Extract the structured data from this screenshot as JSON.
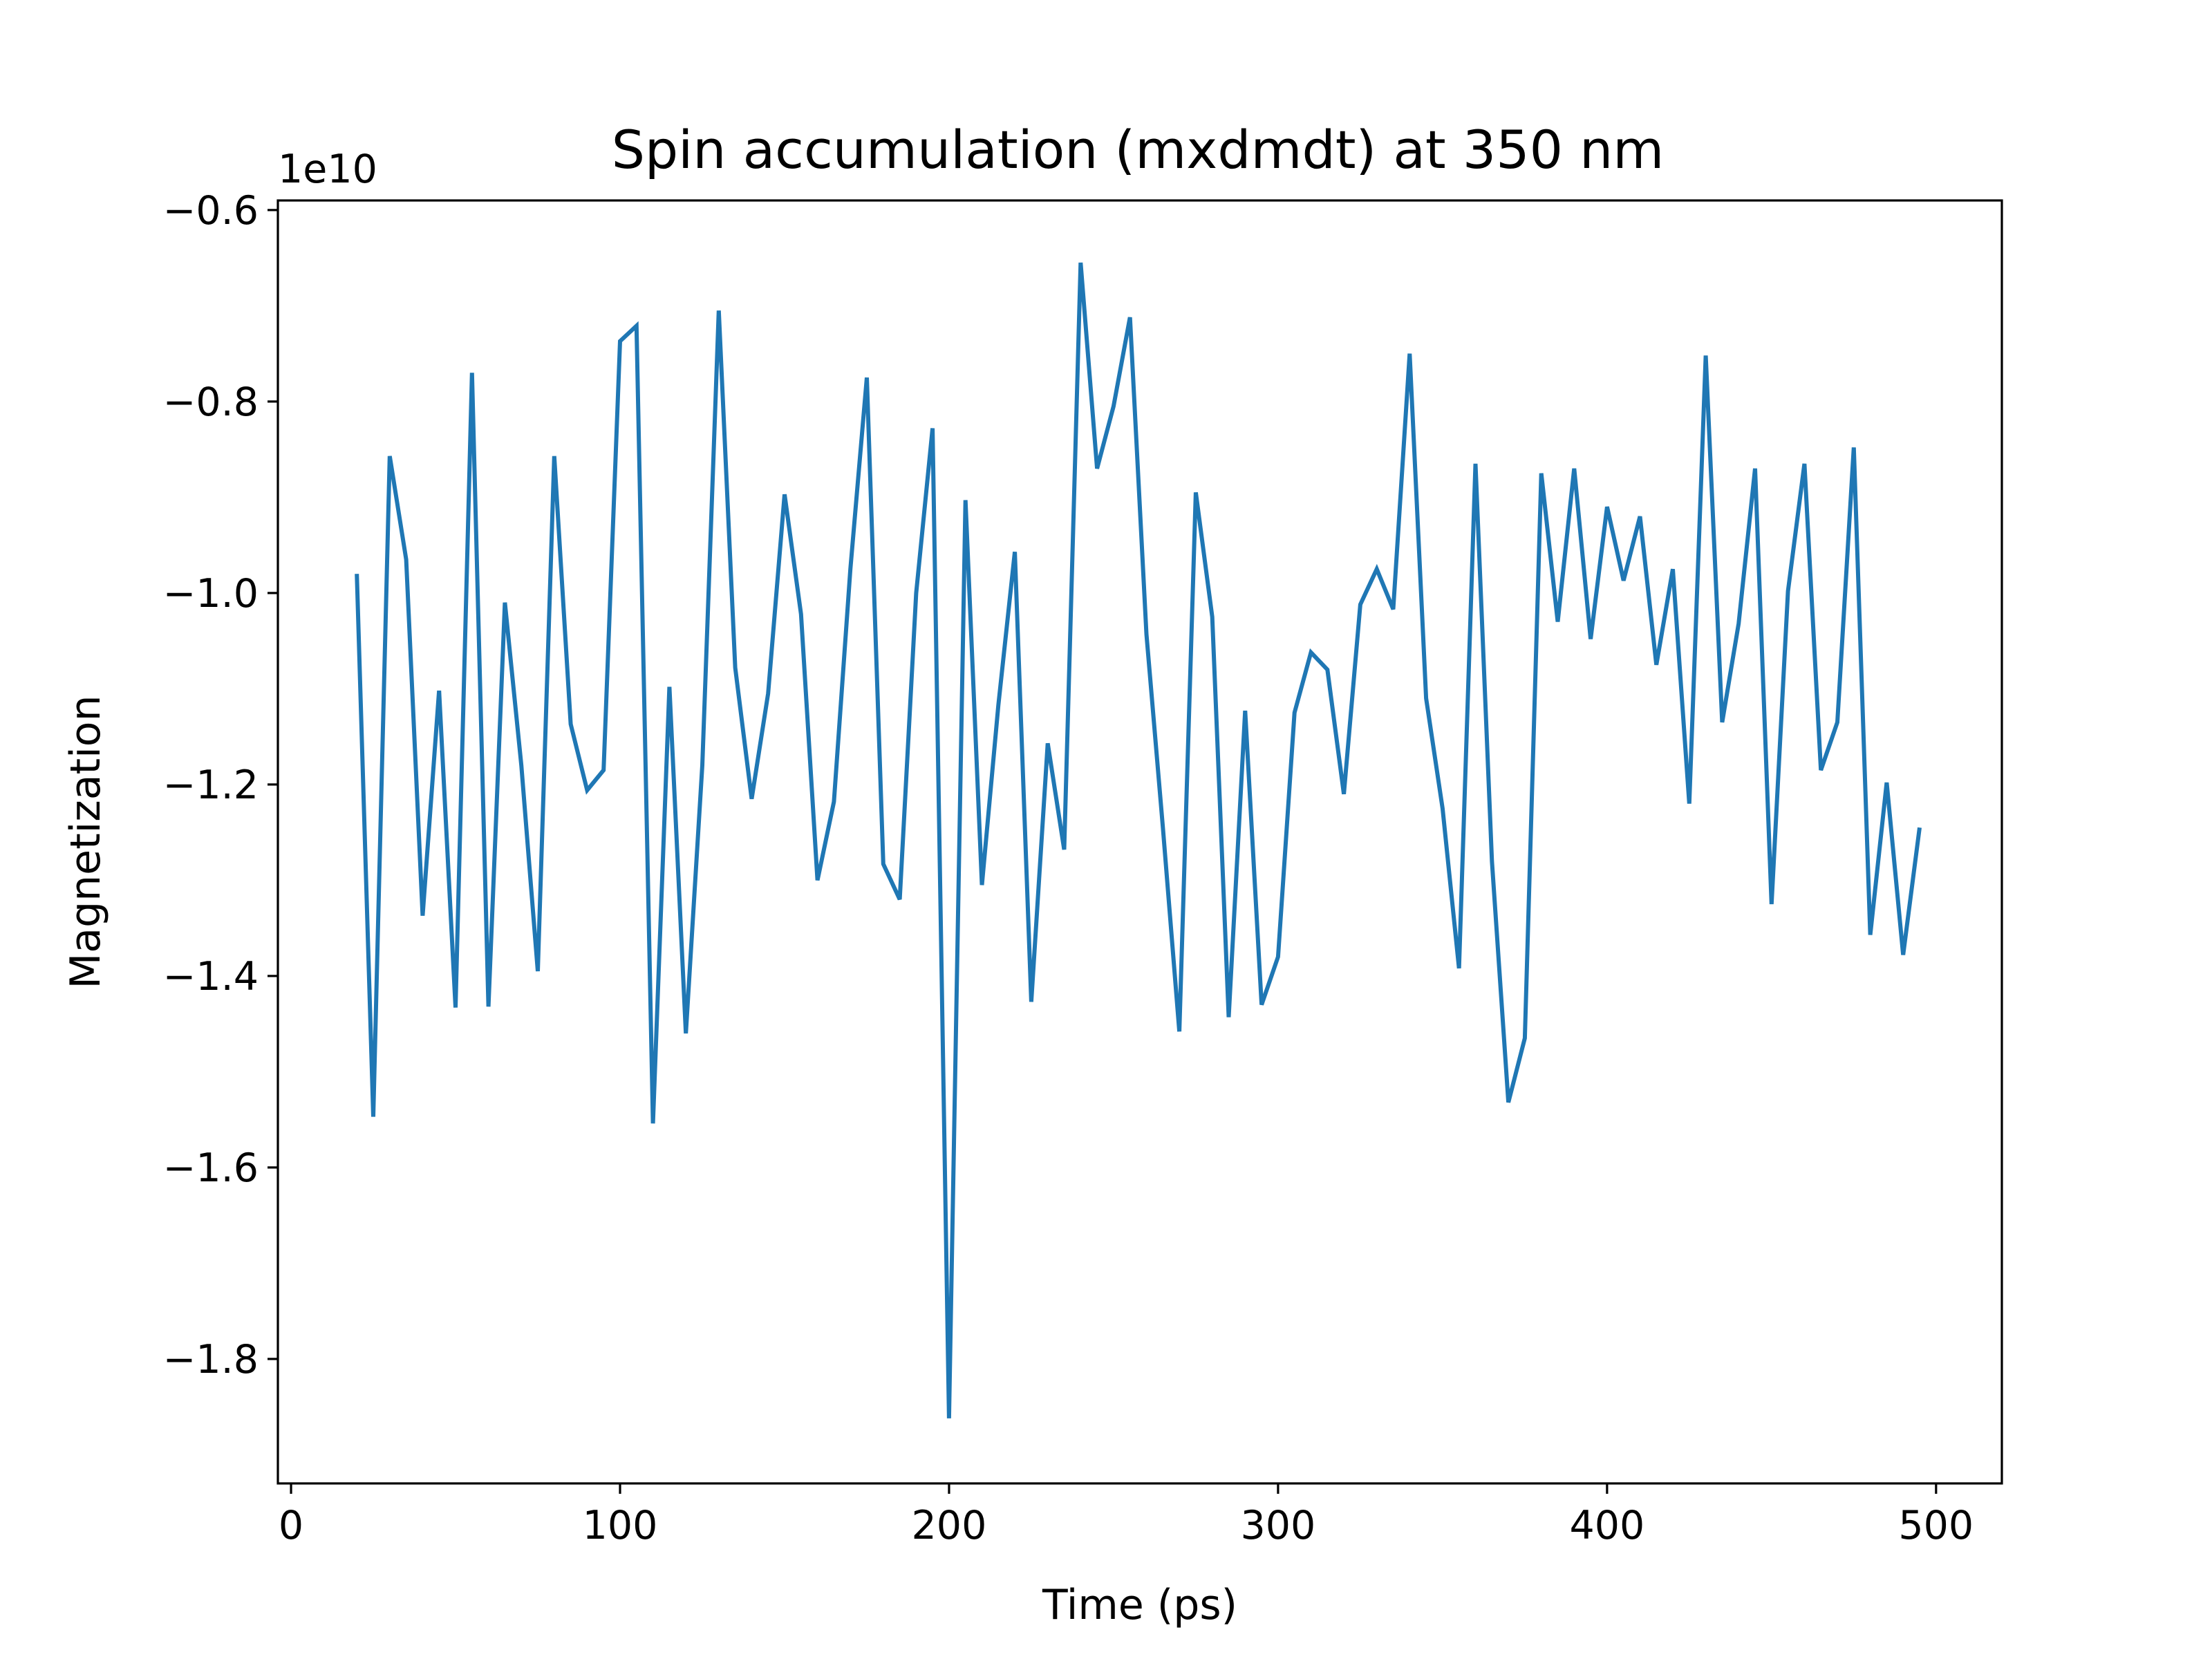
{
  "chart_data": {
    "type": "line",
    "title": "Spin accumulation (mxdmdt) at 350 nm",
    "xlabel": "Time (ps)",
    "ylabel": "Magnetization",
    "y_offset_label": "1e10",
    "xlim": [
      -4,
      520
    ],
    "ylim": [
      -1.93,
      -0.59
    ],
    "x_ticks": [
      0,
      100,
      200,
      300,
      400,
      500
    ],
    "x_tick_labels": [
      "0",
      "100",
      "200",
      "300",
      "400",
      "500"
    ],
    "y_ticks": [
      -0.6,
      -0.8,
      -1.0,
      -1.2,
      -1.4,
      -1.6,
      -1.8
    ],
    "y_tick_labels": [
      "−0.6",
      "−0.8",
      "−1.0",
      "−1.2",
      "−1.4",
      "−1.6",
      "−1.8"
    ],
    "grid": false,
    "line_color": "#1f77b4",
    "series": [
      {
        "x": [
          20,
          25,
          30,
          35,
          40,
          45,
          50,
          55,
          60,
          65,
          70,
          75,
          80,
          85,
          90,
          95,
          100,
          105,
          110,
          115,
          120,
          125,
          130,
          135,
          140,
          145,
          150,
          155,
          160,
          165,
          170,
          175,
          180,
          185,
          190,
          195,
          200,
          205,
          210,
          215,
          220,
          225,
          230,
          235,
          240,
          245,
          250,
          255,
          260,
          265,
          270,
          275,
          280,
          285,
          290,
          295,
          300,
          305,
          310,
          315,
          320,
          325,
          330,
          335,
          340,
          345,
          350,
          355,
          360,
          365,
          370,
          375,
          380,
          385,
          390,
          395,
          400,
          405,
          410,
          415,
          420,
          425,
          430,
          435,
          440,
          445,
          450,
          455,
          460,
          465,
          470,
          475,
          480,
          485,
          490,
          495
        ],
        "values": [
          -0.98,
          -1.547,
          -0.857,
          -0.965,
          -1.337,
          -1.102,
          -1.433,
          -0.77,
          -1.432,
          -1.01,
          -1.18,
          -1.395,
          -0.857,
          -1.137,
          -1.206,
          -1.185,
          -0.737,
          -0.721,
          -1.554,
          -1.098,
          -1.46,
          -1.18,
          -0.705,
          -1.078,
          -1.215,
          -1.105,
          -0.897,
          -1.022,
          -1.3,
          -1.218,
          -0.975,
          -0.775,
          -1.283,
          -1.32,
          -1.0,
          -0.828,
          -1.862,
          -0.903,
          -1.305,
          -1.117,
          -0.957,
          -1.427,
          -1.157,
          -1.268,
          -0.655,
          -0.87,
          -0.805,
          -0.712,
          -1.043,
          -1.245,
          -1.458,
          -0.895,
          -1.025,
          -1.443,
          -1.123,
          -1.43,
          -1.38,
          -1.125,
          -1.062,
          -1.08,
          -1.21,
          -1.012,
          -0.975,
          -1.017,
          -0.75,
          -1.11,
          -1.225,
          -1.392,
          -0.865,
          -1.28,
          -1.532,
          -1.465,
          -0.875,
          -1.03,
          -0.87,
          -1.048,
          -0.91,
          -0.987,
          -0.92,
          -1.075,
          -0.975,
          -1.22,
          -0.752,
          -1.135,
          -1.032,
          -0.87,
          -1.325,
          -0.998,
          -0.865,
          -1.185,
          -1.135,
          -0.848,
          -1.357,
          -1.198,
          -1.378,
          -1.245
        ]
      }
    ]
  }
}
